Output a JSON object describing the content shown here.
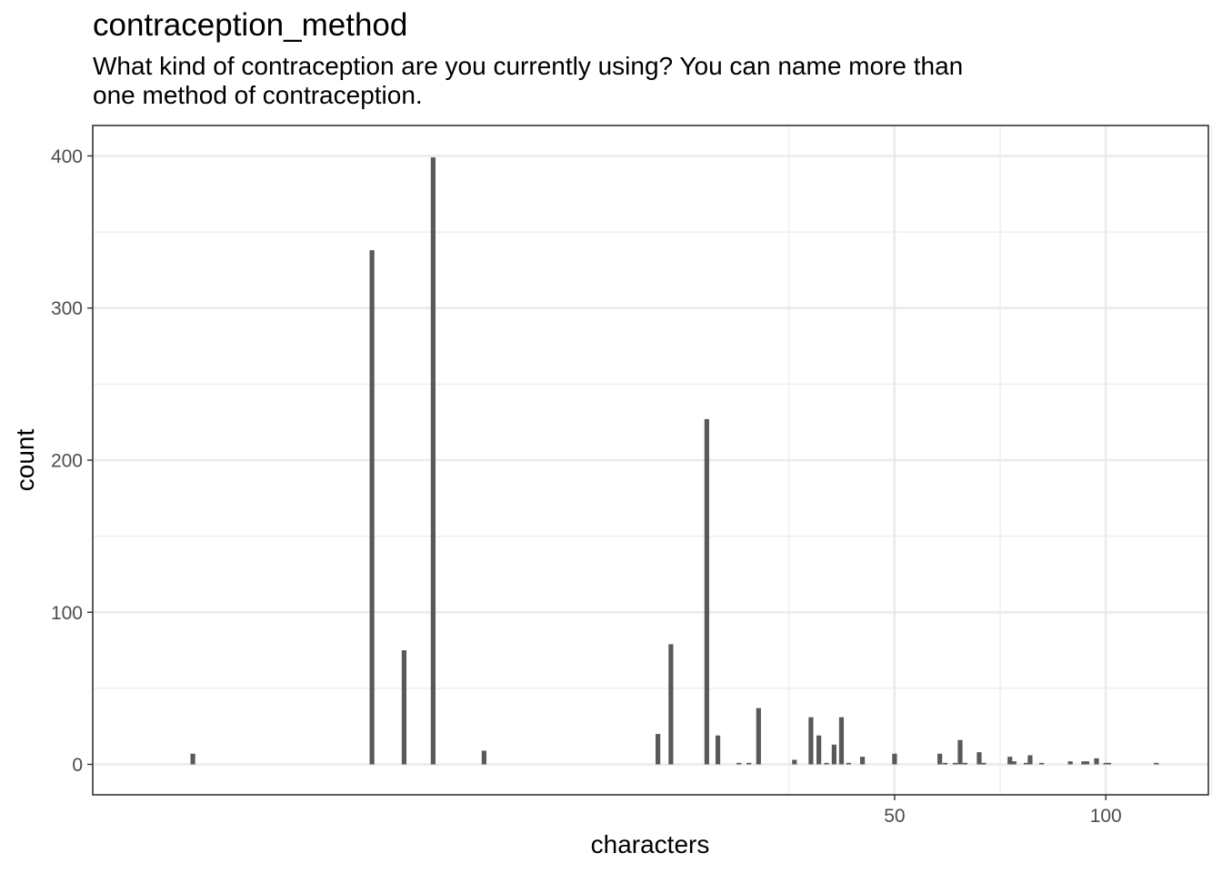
{
  "chart_data": {
    "type": "bar",
    "title": "contraception_method",
    "subtitle": "What kind of contraception are you currently using? You can name more than one method of contraception.",
    "xlabel": "characters",
    "ylabel": "count",
    "x_scale": "log10",
    "xlim": [
      3.6,
      140
    ],
    "ylim": [
      -20,
      420
    ],
    "x_ticks": [
      50,
      100
    ],
    "y_ticks": [
      0,
      100,
      200,
      300,
      400
    ],
    "grid": true,
    "bar_color": "#595959",
    "series": [
      {
        "x": [
          5,
          9,
          10,
          11,
          13,
          23,
          24,
          27,
          28,
          30,
          31,
          32,
          36,
          38,
          39,
          40,
          41,
          42,
          43,
          45,
          50,
          58,
          59,
          61,
          62,
          63,
          66,
          67,
          73,
          74,
          77,
          78,
          81,
          89,
          93,
          94,
          97,
          100,
          101,
          118
        ],
        "values": [
          7,
          338,
          75,
          399,
          9,
          20,
          79,
          227,
          19,
          1,
          1,
          37,
          3,
          31,
          19,
          1,
          13,
          31,
          1,
          5,
          7,
          7,
          1,
          1,
          16,
          1,
          8,
          1,
          5,
          2,
          1,
          6,
          1,
          2,
          2,
          2,
          4,
          1,
          1,
          1
        ]
      }
    ]
  }
}
